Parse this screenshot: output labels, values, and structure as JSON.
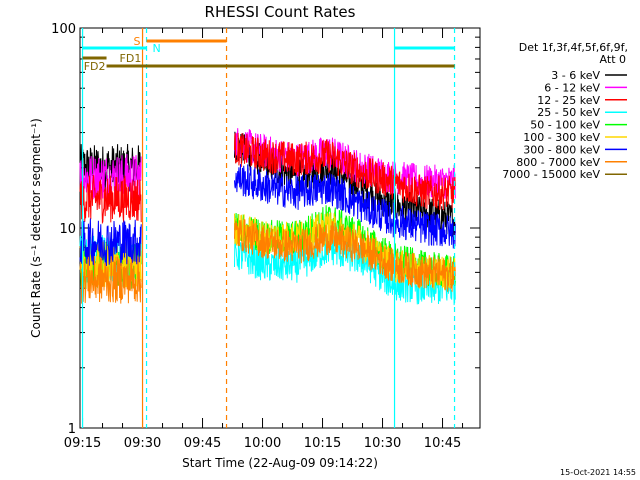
{
  "chart_data": {
    "type": "line",
    "title": "RHESSI Count Rates",
    "xlabel": "Start Time (22-Aug-09 09:14:22)",
    "ylabel": "Count Rate (s⁻¹ detector segment⁻¹)",
    "yscale": "log",
    "ylim": [
      1,
      100
    ],
    "xlim_minutes": [
      0,
      100
    ],
    "xticks": [
      "09:15",
      "09:30",
      "09:45",
      "10:00",
      "10:15",
      "10:30",
      "10:45"
    ],
    "yticks": [
      "1",
      "10",
      "100"
    ],
    "grid": false,
    "legend_header": [
      "Det 1f,3f,4f,5f,6f,9f,",
      "Att 0"
    ],
    "legend_position": "right",
    "data_gap": {
      "start": "09:31",
      "end": "09:53"
    },
    "series": [
      {
        "name": "3 - 6 keV",
        "color": "#000000",
        "pre": 20,
        "post": [
          26,
          21,
          18,
          20,
          16,
          13,
          12,
          11
        ]
      },
      {
        "name": "6 - 12 keV",
        "color": "#ff00ff",
        "pre": 18,
        "post": [
          27,
          24,
          22,
          24,
          20,
          18,
          17,
          17
        ]
      },
      {
        "name": "12 - 25 keV",
        "color": "#ff0000",
        "pre": 14,
        "post": [
          25,
          23,
          22,
          23,
          19,
          17,
          15,
          15
        ]
      },
      {
        "name": "25 - 50 keV",
        "color": "#00ffff",
        "pre": 7,
        "post": [
          7.5,
          6.5,
          6.5,
          8,
          7,
          5.3,
          5,
          5
        ]
      },
      {
        "name": "50 - 100 keV",
        "color": "#00ff00",
        "pre": 6.5,
        "post": [
          10,
          9,
          9,
          11,
          9,
          7,
          6.3,
          6
        ]
      },
      {
        "name": "100 - 300 keV",
        "color": "#ffd700",
        "pre": 6.5,
        "post": [
          10,
          9,
          9,
          10,
          8.5,
          6.5,
          6,
          6
        ]
      },
      {
        "name": "300 - 800 keV",
        "color": "#0000ff",
        "pre": 8.5,
        "post": [
          18,
          16,
          15,
          16,
          13,
          11,
          10,
          9.5
        ]
      },
      {
        "name": "800 - 7000 keV",
        "color": "#ff8000",
        "pre": 5.5,
        "post": [
          9.5,
          8.5,
          8,
          9,
          8,
          6.5,
          6,
          5.8
        ]
      },
      {
        "name": "7000 - 15000 keV",
        "color": "#806600",
        "pre": null,
        "post": null
      }
    ],
    "annotations": {
      "bars": [
        {
          "label": "S",
          "color": "#ff8000",
          "start": "09:31",
          "end": "09:51",
          "row": 1
        },
        {
          "label": "N",
          "color": "#00ffff",
          "start": "09:15",
          "end": "09:31",
          "row": 2
        },
        {
          "label": "N",
          "color": "#00ffff",
          "start": "10:33",
          "end": "10:48",
          "row": 2
        },
        {
          "label": "FD1",
          "color": "#806600",
          "start": "09:15",
          "end": "09:21",
          "row": 3
        },
        {
          "label": "FD2",
          "color": "#806600",
          "start": "09:21",
          "end": "10:48",
          "row": 4
        }
      ],
      "vlines": [
        {
          "time": "09:15",
          "color": "#00ffff",
          "style": "solid"
        },
        {
          "time": "09:30",
          "color": "#ff8000",
          "style": "solid"
        },
        {
          "time": "09:31",
          "color": "#00ffff",
          "style": "dashed"
        },
        {
          "time": "09:51",
          "color": "#ff8000",
          "style": "dashed"
        },
        {
          "time": "10:33",
          "color": "#00ffff",
          "style": "solid"
        },
        {
          "time": "10:48",
          "color": "#00ffff",
          "style": "dashed"
        }
      ]
    }
  },
  "timestamp": "15-Oct-2021 14:55"
}
